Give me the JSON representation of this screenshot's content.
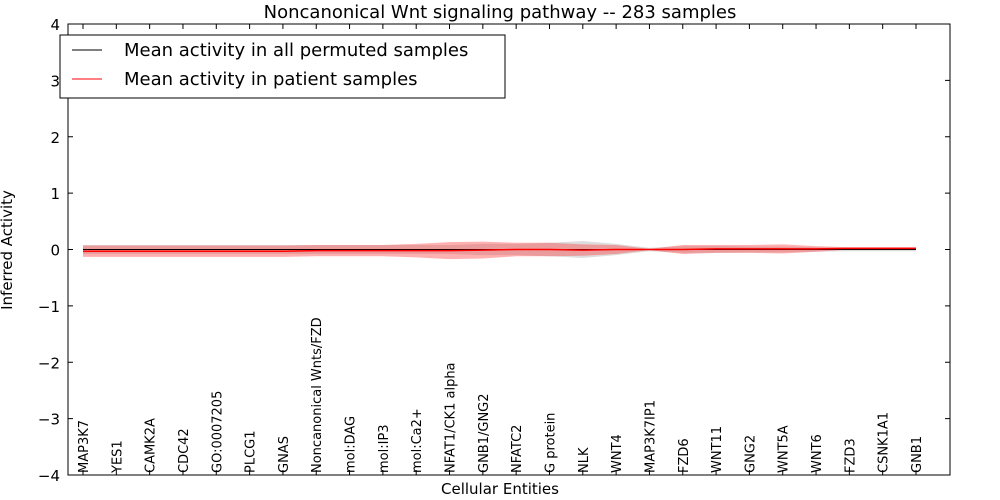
{
  "chart_data": {
    "type": "line",
    "title": "Noncanonical Wnt signaling pathway -- 283 samples",
    "xlabel": "Cellular Entities",
    "ylabel": "Inferred Activity",
    "ylim": [
      -4,
      4
    ],
    "yticks": [
      "4",
      "3",
      "2",
      "1",
      "0",
      "−1",
      "−2",
      "−3",
      "−4"
    ],
    "ytick_values": [
      4,
      3,
      2,
      1,
      0,
      -1,
      -2,
      -3,
      -4
    ],
    "grid": false,
    "legend_position": "top-left",
    "categories": [
      "MAP3K7",
      "YES1",
      "CAMK2A",
      "CDC42",
      "GO:0007205",
      "PLCG1",
      "GNAS",
      "Noncanonical Wnts/FZD",
      "mol:DAG",
      "mol:IP3",
      "mol:Ca2+",
      "NFAT1/CK1 alpha",
      "GNB1/GNG2",
      "NFATC2",
      "G protein",
      "NLK",
      "WNT4",
      "MAP3K7IP1",
      "FZD6",
      "WNT11",
      "GNG2",
      "WNT5A",
      "WNT6",
      "FZD3",
      "CSNK1A1",
      "GNB1"
    ],
    "series": [
      {
        "name": "Mean activity in all permuted samples",
        "color": "#000000",
        "values": [
          0,
          0,
          0,
          0,
          0,
          0,
          0,
          0,
          0,
          0,
          0,
          0,
          0,
          0,
          0,
          0,
          0,
          0,
          0,
          0,
          0,
          0,
          0,
          0,
          0,
          0
        ],
        "band": [
          0.08,
          0.08,
          0.08,
          0.08,
          0.08,
          0.08,
          0.08,
          0.08,
          0.08,
          0.08,
          0.08,
          0.08,
          0.1,
          0.1,
          0.12,
          0.15,
          0.1,
          0.03,
          0.06,
          0.06,
          0.05,
          0.05,
          0.04,
          0.03,
          0.03,
          0.03
        ]
      },
      {
        "name": "Mean activity in patient samples",
        "color": "#ff0000",
        "values": [
          -0.03,
          -0.03,
          -0.03,
          -0.03,
          -0.03,
          -0.03,
          -0.03,
          -0.02,
          -0.02,
          -0.02,
          -0.02,
          -0.02,
          -0.01,
          0,
          0,
          -0.01,
          0,
          0,
          0,
          0.01,
          0.01,
          0.01,
          0.01,
          0.02,
          0.02,
          0.02
        ],
        "band": [
          0.1,
          0.1,
          0.1,
          0.1,
          0.1,
          0.1,
          0.1,
          0.1,
          0.1,
          0.1,
          0.12,
          0.15,
          0.15,
          0.12,
          0.12,
          0.1,
          0.08,
          0.01,
          0.08,
          0.07,
          0.07,
          0.08,
          0.05,
          0.02,
          0.02,
          0.02
        ]
      }
    ]
  }
}
